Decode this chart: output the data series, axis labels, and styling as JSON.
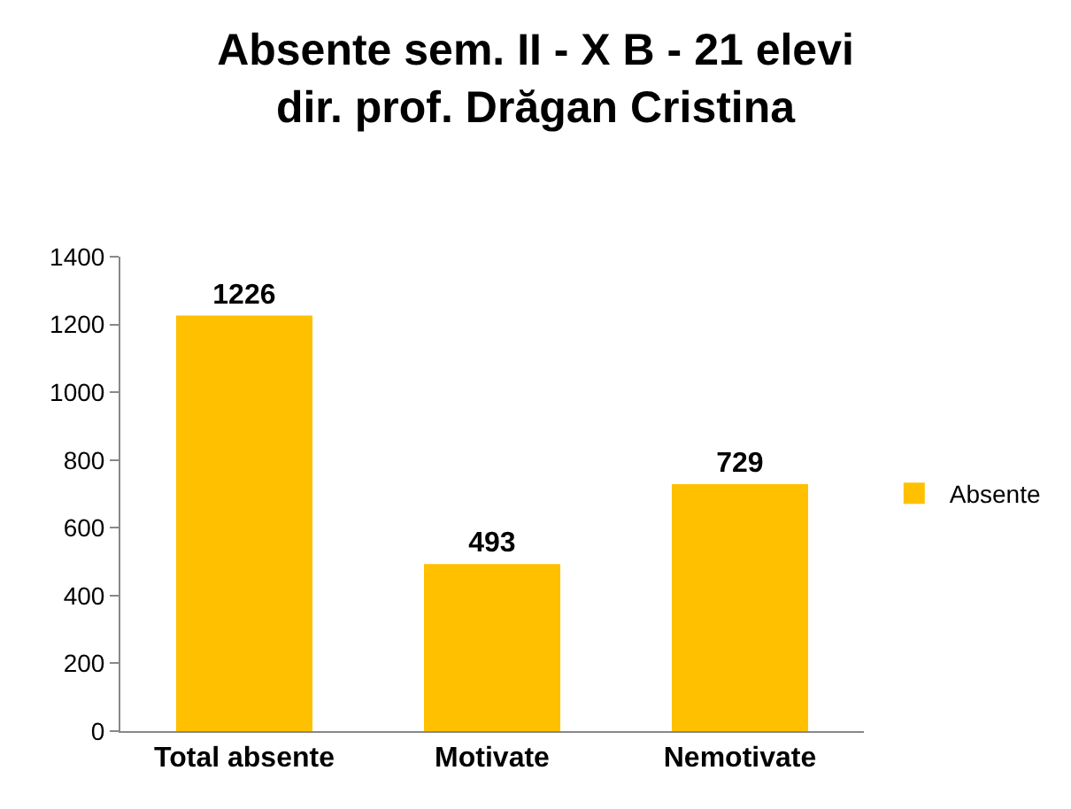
{
  "chart_data": {
    "type": "bar",
    "title": "Absente sem. II - X B - 21 elevi\ndir. prof. Drăgan Cristina",
    "categories": [
      "Total absente",
      "Motivate",
      "Nemotivate"
    ],
    "series": [
      {
        "name": "Absente",
        "color": "#ffc000",
        "values": [
          1226,
          493,
          729
        ]
      }
    ],
    "ylim": [
      0,
      1400
    ],
    "yticks": [
      0,
      200,
      400,
      600,
      800,
      1000,
      1200,
      1400
    ],
    "grid": false,
    "legend": "right",
    "data_labels": true
  }
}
